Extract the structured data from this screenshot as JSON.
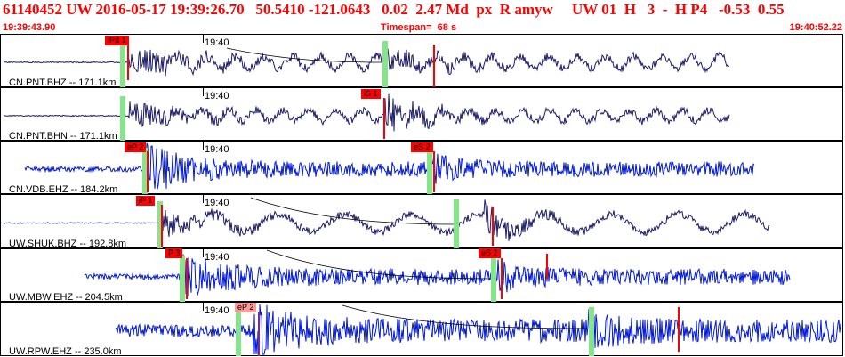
{
  "header": {
    "summary": "61140452 UW 2016-05-17 19:39:26.70   50.5410 -121.0643   0.02  2.47 Md  px  R amyw     UW 01  H   3  -  H P4   -0.53  0.55",
    "start_time": "19:39:43.90",
    "timespan": "Timespan=  68 s",
    "end_time": "19:40:52.22"
  },
  "traces": [
    {
      "label": "CN.PNT.BHZ -- 171.1km",
      "time_label": "19:40",
      "color": "#1c1c6b",
      "picks": [
        {
          "label": "iPd 1",
          "style": "red"
        }
      ],
      "shape": {
        "start": 4,
        "end": 820,
        "onset": 145,
        "s": 430,
        "noise": 0.6,
        "pamp": 16,
        "samp": 18,
        "waveamp": 7,
        "wavelen": 32,
        "seed": 11
      }
    },
    {
      "label": "CN.PNT.BHN -- 171.1km",
      "time_label": "19:40",
      "color": "#1c1c6b",
      "picks": [
        {
          "label": "iS 1",
          "style": "red"
        }
      ],
      "shape": {
        "start": 4,
        "end": 820,
        "onset": 145,
        "s": 432,
        "noise": 0.6,
        "pamp": 14,
        "samp": 22,
        "waveamp": 6,
        "wavelen": 30,
        "seed": 23
      }
    },
    {
      "label": "CN.VDB.EHZ -- 184.2km",
      "time_label": "19:40",
      "color": "#0018d8",
      "picks": [
        {
          "label": "eP 2",
          "style": "red"
        },
        {
          "label": "eS 2",
          "style": "red"
        }
      ],
      "shape": {
        "start": 28,
        "end": 848,
        "onset": 165,
        "s": 485,
        "noise": 3,
        "pamp": 22,
        "samp": 12,
        "waveamp": 0,
        "wavelen": 30,
        "seed": 37
      }
    },
    {
      "label": "UW.SHUK.BHZ -- 192.8km",
      "time_label": "19:40",
      "color": "#1c1c6b",
      "picks": [
        {
          "label": "iP 1",
          "style": "red"
        }
      ],
      "shape": {
        "start": 4,
        "end": 865,
        "onset": 182,
        "s": 545,
        "noise": 0.5,
        "pamp": 14,
        "samp": 16,
        "waveamp": 10,
        "wavelen": 75,
        "seed": 41
      }
    },
    {
      "label": "UW.MBW.EHZ -- 204.5km",
      "time_label": "19:40",
      "color": "#0018d8",
      "picks": [
        {
          "label": "P 3",
          "style": "red"
        },
        {
          "label": "eS 2",
          "style": "red"
        }
      ],
      "shape": {
        "start": 95,
        "end": 888,
        "onset": 205,
        "s": 555,
        "noise": 3.5,
        "pamp": 22,
        "samp": 14,
        "waveamp": 0,
        "wavelen": 30,
        "seed": 53
      }
    },
    {
      "label": "UW.RPW.EHZ -- 235.0km",
      "time_label": "19:40",
      "color": "#0018d8",
      "picks": [
        {
          "label": "eP 2",
          "style": "light"
        }
      ],
      "shape": {
        "start": 130,
        "end": 946,
        "onset": 285,
        "s": 660,
        "noise": 7,
        "pamp": 24,
        "samp": 14,
        "waveamp": 0,
        "wavelen": 30,
        "seed": 67
      }
    }
  ]
}
